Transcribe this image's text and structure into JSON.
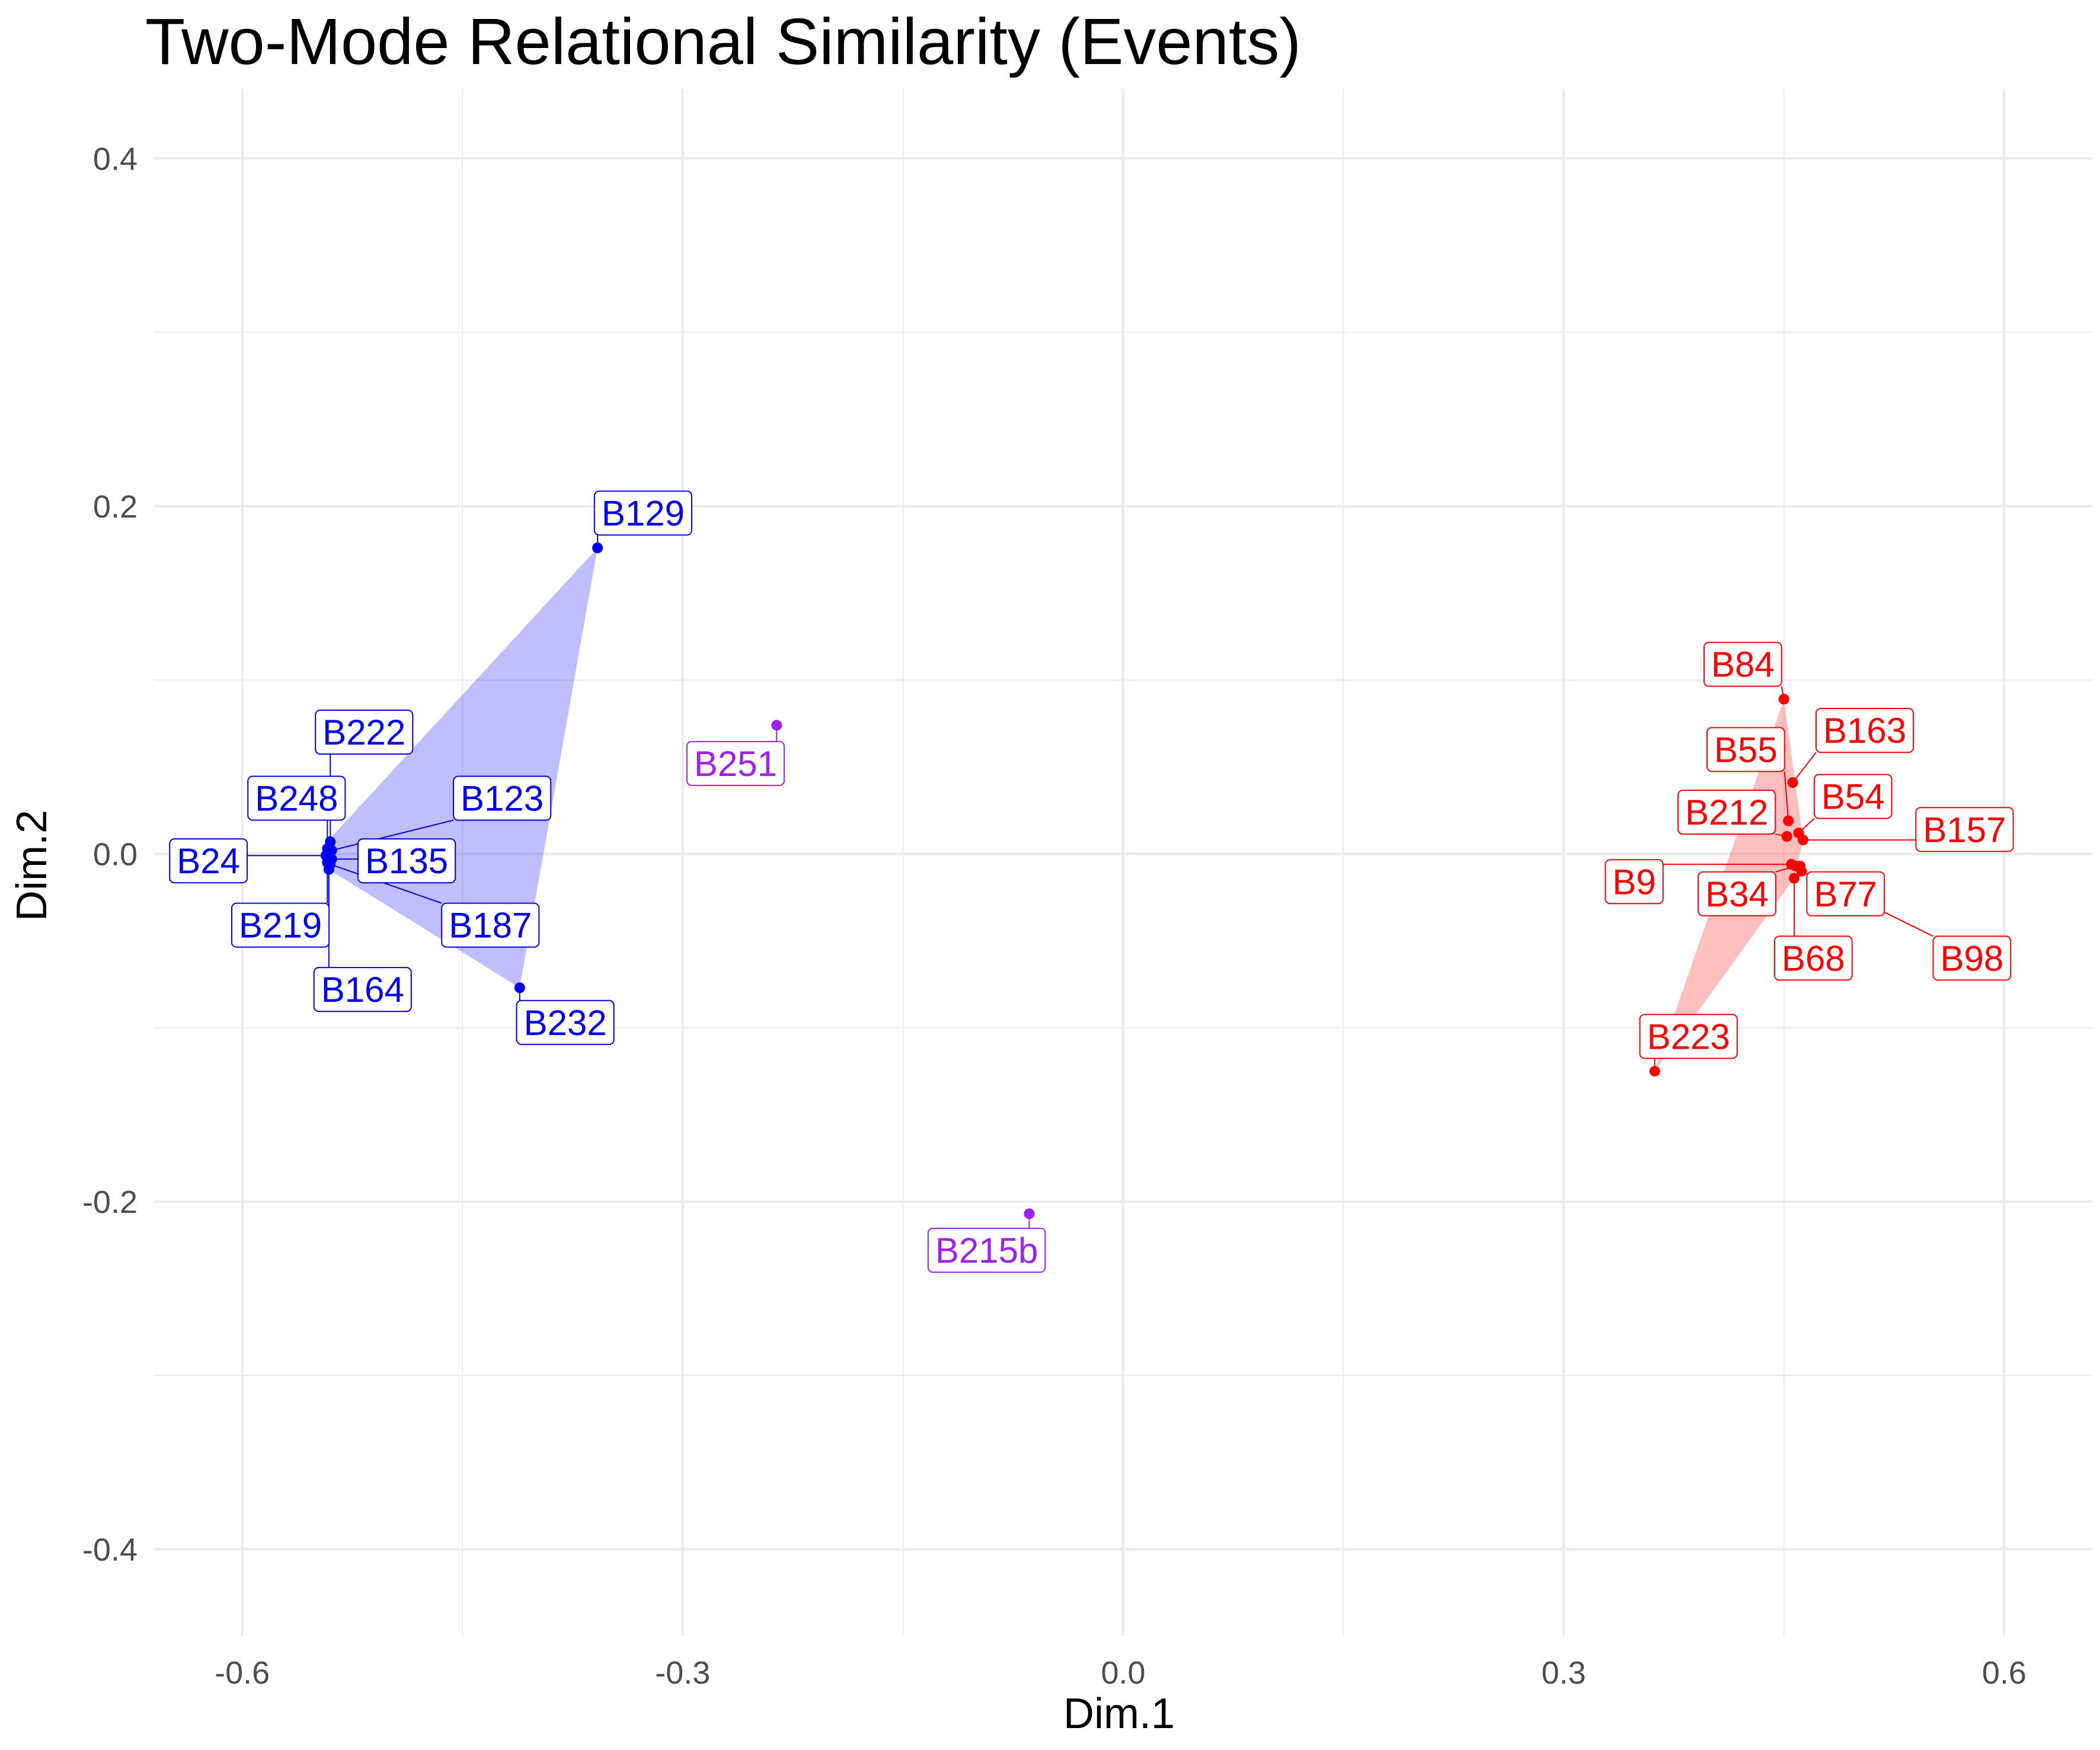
{
  "chart_data": {
    "type": "scatter",
    "title": "Two-Mode Relational Similarity (Events)",
    "xlabel": "Dim.1",
    "ylabel": "Dim.2",
    "xlim": [
      -0.66,
      0.66
    ],
    "ylim": [
      -0.45,
      0.44
    ],
    "x_ticks": [
      {
        "value": -0.6,
        "label": "-0.6"
      },
      {
        "value": -0.3,
        "label": "-0.3"
      },
      {
        "value": 0.0,
        "label": "0.0"
      },
      {
        "value": 0.3,
        "label": "0.3"
      },
      {
        "value": 0.6,
        "label": "0.6"
      }
    ],
    "y_ticks": [
      {
        "value": 0.4,
        "label": "0.4"
      },
      {
        "value": 0.2,
        "label": "0.2"
      },
      {
        "value": 0.0,
        "label": "0.0"
      },
      {
        "value": -0.2,
        "label": "-0.2"
      },
      {
        "value": -0.4,
        "label": "-0.4"
      }
    ],
    "grid": true,
    "legend": "none",
    "groups": [
      {
        "color": "#0000ee",
        "hull_fill": "#0000ff",
        "hull_opacity": 0.25,
        "hull": [
          [
            -0.541,
            0.008
          ],
          [
            -0.358,
            0.176
          ],
          [
            -0.411,
            -0.077
          ],
          [
            -0.543,
            -0.008
          ]
        ],
        "points": [
          {
            "label": "B129",
            "x": -0.358,
            "y": 0.176,
            "lx": -0.327,
            "ly": 0.196
          },
          {
            "label": "B222",
            "x": -0.54,
            "y": 0.007,
            "lx": -0.517,
            "ly": 0.07
          },
          {
            "label": "B248",
            "x": -0.542,
            "y": 0.003,
            "lx": -0.563,
            "ly": 0.032
          },
          {
            "label": "B123",
            "x": -0.539,
            "y": 0.002,
            "lx": -0.423,
            "ly": 0.032
          },
          {
            "label": "B24",
            "x": -0.543,
            "y": -0.001,
            "lx": -0.623,
            "ly": -0.004
          },
          {
            "label": "B135",
            "x": -0.539,
            "y": -0.003,
            "lx": -0.488,
            "ly": -0.004
          },
          {
            "label": "B219",
            "x": -0.542,
            "y": -0.005,
            "lx": -0.574,
            "ly": -0.041
          },
          {
            "label": "B187",
            "x": -0.54,
            "y": -0.006,
            "lx": -0.431,
            "ly": -0.041
          },
          {
            "label": "B164",
            "x": -0.541,
            "y": -0.009,
            "lx": -0.518,
            "ly": -0.078
          },
          {
            "label": "B232",
            "x": -0.411,
            "y": -0.077,
            "lx": -0.38,
            "ly": -0.097
          }
        ]
      },
      {
        "color": "#ff0000",
        "hull_fill": "#ff0000",
        "hull_opacity": 0.25,
        "hull": [
          [
            0.45,
            0.089
          ],
          [
            0.463,
            0.008
          ],
          [
            0.457,
            -0.014
          ],
          [
            0.362,
            -0.125
          ]
        ],
        "points": [
          {
            "label": "B84",
            "x": 0.45,
            "y": 0.089,
            "lx": 0.422,
            "ly": 0.109
          },
          {
            "label": "B163",
            "x": 0.456,
            "y": 0.041,
            "lx": 0.505,
            "ly": 0.071
          },
          {
            "label": "B55",
            "x": 0.453,
            "y": 0.019,
            "lx": 0.424,
            "ly": 0.06
          },
          {
            "label": "B54",
            "x": 0.46,
            "y": 0.012,
            "lx": 0.497,
            "ly": 0.033
          },
          {
            "label": "B212",
            "x": 0.452,
            "y": 0.01,
            "lx": 0.411,
            "ly": 0.024
          },
          {
            "label": "B157",
            "x": 0.463,
            "y": 0.008,
            "lx": 0.573,
            "ly": 0.014
          },
          {
            "label": "B9",
            "x": 0.455,
            "y": -0.006,
            "lx": 0.348,
            "ly": -0.016
          },
          {
            "label": "B34",
            "x": 0.458,
            "y": -0.007,
            "lx": 0.418,
            "ly": -0.023
          },
          {
            "label": "B77",
            "x": 0.461,
            "y": -0.007,
            "lx": 0.492,
            "ly": -0.023
          },
          {
            "label": "B68",
            "x": 0.457,
            "y": -0.014,
            "lx": 0.47,
            "ly": -0.06
          },
          {
            "label": "B98",
            "x": 0.462,
            "y": -0.01,
            "lx": 0.578,
            "ly": -0.06
          },
          {
            "label": "B223",
            "x": 0.362,
            "y": -0.125,
            "lx": 0.385,
            "ly": -0.105
          }
        ]
      },
      {
        "color": "#a020f0",
        "hull_fill": "#a020f0",
        "hull_opacity": 0,
        "hull": [],
        "points": [
          {
            "label": "B251",
            "x": -0.236,
            "y": 0.074,
            "lx": -0.264,
            "ly": 0.052
          },
          {
            "label": "B215b",
            "x": -0.064,
            "y": -0.207,
            "lx": -0.093,
            "ly": -0.228
          }
        ]
      }
    ]
  }
}
